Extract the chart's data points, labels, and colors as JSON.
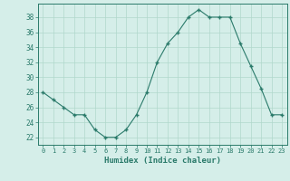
{
  "x": [
    0,
    1,
    2,
    3,
    4,
    5,
    6,
    7,
    8,
    9,
    10,
    11,
    12,
    13,
    14,
    15,
    16,
    17,
    18,
    19,
    20,
    21,
    22,
    23
  ],
  "y": [
    28,
    27,
    26,
    25,
    25,
    23,
    22,
    22,
    23,
    25,
    28,
    32,
    34.5,
    36,
    38,
    39,
    38,
    38,
    38,
    34.5,
    31.5,
    28.5,
    25,
    25
  ],
  "line_color": "#2a7a6a",
  "marker": "+",
  "marker_color": "#2a7a6a",
  "bg_color": "#d5eee9",
  "grid_color": "#b0d8cc",
  "axis_color": "#2a7a6a",
  "tick_label_color": "#2a7a6a",
  "xlabel": "Humidex (Indice chaleur)",
  "xlabel_color": "#2a7a6a",
  "xlim": [
    -0.5,
    23.5
  ],
  "ylim": [
    21.0,
    39.8
  ],
  "yticks": [
    22,
    24,
    26,
    28,
    30,
    32,
    34,
    36,
    38
  ],
  "xticks": [
    0,
    1,
    2,
    3,
    4,
    5,
    6,
    7,
    8,
    9,
    10,
    11,
    12,
    13,
    14,
    15,
    16,
    17,
    18,
    19,
    20,
    21,
    22,
    23
  ]
}
